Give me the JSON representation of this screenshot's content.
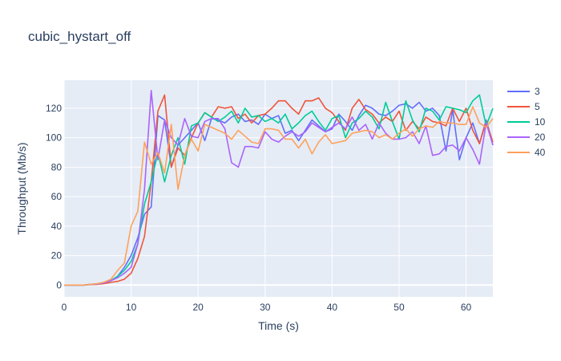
{
  "chart_data": {
    "type": "line",
    "title": "cubic_hystart_off",
    "xlabel": "Time (s)",
    "ylabel": "Throughput (Mb/s)",
    "xlim": [
      0,
      64
    ],
    "ylim": [
      -8,
      139
    ],
    "xticks": [
      0,
      10,
      20,
      30,
      40,
      50,
      60
    ],
    "yticks": [
      0,
      20,
      40,
      60,
      80,
      100,
      120
    ],
    "grid": true,
    "legend_position": "top-right",
    "x": [
      0,
      1,
      2,
      3,
      4,
      5,
      6,
      7,
      8,
      9,
      10,
      11,
      12,
      13,
      14,
      15,
      16,
      17,
      18,
      19,
      20,
      21,
      22,
      23,
      24,
      25,
      26,
      27,
      28,
      29,
      30,
      31,
      32,
      33,
      34,
      35,
      36,
      37,
      38,
      39,
      40,
      41,
      42,
      43,
      44,
      45,
      46,
      47,
      48,
      49,
      50,
      51,
      52,
      53,
      54,
      55,
      56,
      57,
      58,
      59,
      60,
      61,
      62,
      63,
      64
    ],
    "series": [
      {
        "name": "3",
        "color": "#636efa",
        "values": [
          0,
          0,
          0,
          0,
          0.5,
          0.8,
          1.5,
          3,
          6,
          12,
          20,
          32,
          48,
          53,
          115,
          112,
          80,
          95,
          100,
          105,
          110,
          98,
          113,
          112,
          110,
          114,
          116,
          111,
          112,
          109,
          116,
          113,
          115,
          103,
          105,
          98,
          105,
          112,
          108,
          104,
          106,
          116,
          111,
          105,
          115,
          122,
          120,
          116,
          115,
          118,
          122,
          123,
          120,
          124,
          118,
          120,
          115,
          91,
          119,
          85,
          100,
          110,
          96,
          112,
          95
        ]
      },
      {
        "name": "5",
        "color": "#EF553B",
        "values": [
          0,
          0,
          0,
          0,
          0.3,
          0.5,
          1,
          1.8,
          2.5,
          4,
          8,
          18,
          33,
          70,
          118,
          129,
          80,
          93,
          88,
          100,
          110,
          117,
          114,
          121,
          120,
          121,
          113,
          116,
          110,
          115,
          116,
          120,
          125,
          125,
          120,
          116,
          125,
          125,
          127,
          120,
          117,
          111,
          105,
          120,
          126,
          119,
          116,
          110,
          114,
          111,
          118,
          105,
          111,
          106,
          114,
          111,
          110,
          108,
          120,
          111,
          120,
          105,
          96,
          111,
          97
        ]
      },
      {
        "name": "10",
        "color": "#00cc96",
        "values": [
          0,
          0,
          0,
          0,
          0.5,
          0.8,
          1.5,
          3,
          6,
          10,
          16,
          28,
          55,
          70,
          90,
          70,
          88,
          100,
          82,
          108,
          110,
          117,
          114,
          111,
          114,
          118,
          110,
          120,
          114,
          115,
          111,
          113,
          110,
          116,
          106,
          110,
          115,
          118,
          111,
          105,
          113,
          115,
          100,
          110,
          113,
          118,
          114,
          106,
          124,
          111,
          99,
          125,
          112,
          104,
          120,
          118,
          112,
          121,
          120,
          119,
          117,
          125,
          129,
          108,
          120
        ]
      },
      {
        "name": "20",
        "color": "#ab63fa",
        "values": [
          0,
          0,
          0,
          0,
          0.5,
          0.8,
          1.5,
          3,
          5,
          8,
          12,
          28,
          65,
          132,
          85,
          112,
          100,
          95,
          113,
          101,
          100,
          111,
          113,
          113,
          106,
          83,
          80,
          94,
          94,
          93,
          104,
          99,
          97,
          101,
          104,
          101,
          104,
          110,
          107,
          104,
          107,
          110,
          106,
          114,
          105,
          109,
          99,
          110,
          103,
          99,
          99,
          100,
          104,
          96,
          108,
          88,
          89,
          94,
          95,
          91,
          100,
          92,
          82,
          110,
          95
        ]
      },
      {
        "name": "40",
        "color": "#FFA15A",
        "values": [
          0,
          0,
          0,
          0,
          0.5,
          1,
          2,
          4,
          10,
          15,
          40,
          50,
          97,
          82,
          90,
          76,
          109,
          65,
          88,
          99,
          91,
          109,
          107,
          105,
          103,
          99,
          105,
          101,
          97,
          96,
          106,
          106,
          105,
          99,
          99,
          93,
          99,
          89,
          97,
          102,
          96,
          97,
          98,
          103,
          104,
          105,
          104,
          100,
          102,
          99,
          103,
          106,
          101,
          106,
          108,
          107,
          111,
          110,
          110,
          109,
          109,
          121,
          110,
          107,
          113
        ]
      }
    ]
  }
}
